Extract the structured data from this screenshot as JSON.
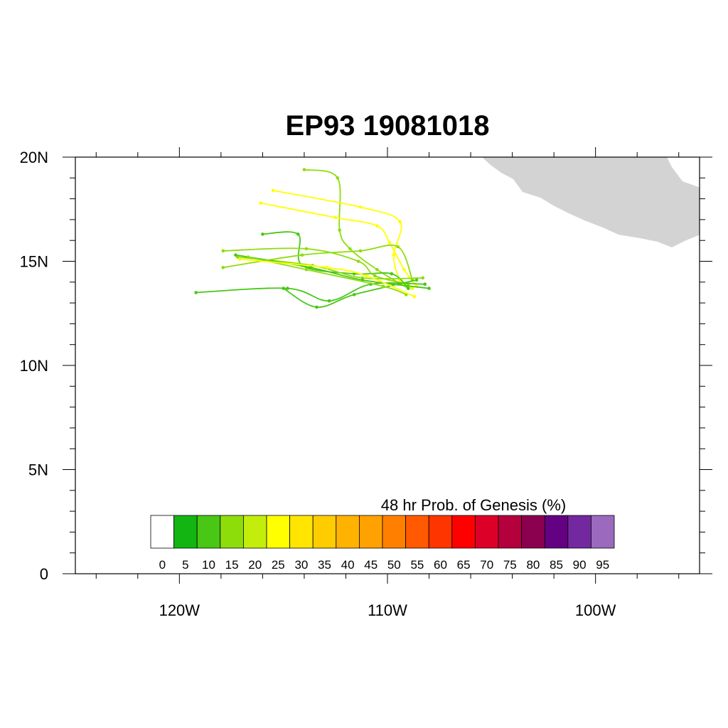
{
  "title": "EP93 19081018",
  "axes": {
    "x_ticks": [
      {
        "label": "120W",
        "lon": -120
      },
      {
        "label": "110W",
        "lon": -110
      },
      {
        "label": "100W",
        "lon": -100
      }
    ],
    "y_ticks": [
      {
        "label": "20N",
        "lat": 20
      },
      {
        "label": "15N",
        "lat": 15
      },
      {
        "label": "10N",
        "lat": 10
      },
      {
        "label": "5N",
        "lat": 5
      },
      {
        "label": "0",
        "lat": 0
      }
    ],
    "lon_range": [
      -125,
      -95
    ],
    "lat_range": [
      0,
      20
    ]
  },
  "land_color": "#d3d3d3",
  "colorbar": {
    "title": "48 hr Prob. of Genesis (%)",
    "labels": [
      "0",
      "5",
      "10",
      "15",
      "20",
      "25",
      "30",
      "35",
      "40",
      "45",
      "50",
      "55",
      "60",
      "65",
      "70",
      "75",
      "80",
      "85",
      "90",
      "95"
    ],
    "colors": [
      "#ffffff",
      "#13b513",
      "#48c715",
      "#8ddd0b",
      "#c3ee0c",
      "#ffff00",
      "#ffe500",
      "#ffcc00",
      "#ffb200",
      "#ffa100",
      "#ff8000",
      "#ff5a00",
      "#ff3500",
      "#ff0000",
      "#dc0028",
      "#b4003c",
      "#8c0050",
      "#640082",
      "#7328a0",
      "#9b69be"
    ]
  },
  "tracks": [
    {
      "color": "#8ddd0b",
      "points": [
        [
          -114,
          19.4
        ],
        [
          -112.4,
          19
        ],
        [
          -112.3,
          16.5
        ],
        [
          -111.8,
          15.6
        ],
        [
          -110.5,
          14.6
        ],
        [
          -109,
          13.7
        ]
      ]
    },
    {
      "color": "#ffff00",
      "points": [
        [
          -115.5,
          18.4
        ],
        [
          -111.3,
          17.6
        ],
        [
          -109.4,
          16.9
        ],
        [
          -109.7,
          15.3
        ],
        [
          -109.4,
          14.1
        ],
        [
          -108.8,
          13.7
        ]
      ]
    },
    {
      "color": "#ffff00",
      "points": [
        [
          -116.1,
          17.8
        ],
        [
          -112.5,
          17.1
        ],
        [
          -110.5,
          16.7
        ],
        [
          -109.9,
          15.9
        ],
        [
          -109.2,
          14.6
        ],
        [
          -108.6,
          13.8
        ]
      ]
    },
    {
      "color": "#48c715",
      "points": [
        [
          -116,
          16.3
        ],
        [
          -114.3,
          16.3
        ],
        [
          -114.1,
          14.8
        ],
        [
          -111.6,
          14.4
        ],
        [
          -109.8,
          14.4
        ],
        [
          -109,
          13.7
        ]
      ]
    },
    {
      "color": "#8ddd0b",
      "points": [
        [
          -117.9,
          15.5
        ],
        [
          -113.9,
          15.6
        ],
        [
          -111.4,
          15
        ],
        [
          -110.6,
          14.3
        ],
        [
          -109,
          13.9
        ]
      ]
    },
    {
      "color": "#8ddd0b",
      "points": [
        [
          -117.2,
          15.2
        ],
        [
          -113.6,
          14.8
        ],
        [
          -111.2,
          14.2
        ],
        [
          -108.3,
          14.2
        ]
      ]
    },
    {
      "color": "#48c715",
      "points": [
        [
          -117.3,
          15.3
        ],
        [
          -113.7,
          14.7
        ],
        [
          -111.2,
          14.1
        ],
        [
          -108,
          13.7
        ]
      ]
    },
    {
      "color": "#8ddd0b",
      "points": [
        [
          -117.9,
          14.7
        ],
        [
          -114.1,
          15.3
        ],
        [
          -111.3,
          15.5
        ],
        [
          -109.5,
          15.7
        ],
        [
          -108.8,
          14.1
        ]
      ]
    },
    {
      "color": "#48c715",
      "points": [
        [
          -119.2,
          13.5
        ],
        [
          -114.8,
          13.7
        ],
        [
          -112.8,
          13.1
        ],
        [
          -110.8,
          13.9
        ],
        [
          -108.2,
          13.9
        ]
      ]
    },
    {
      "color": "#48c715",
      "points": [
        [
          -115,
          13.7
        ],
        [
          -113.4,
          12.8
        ],
        [
          -111.6,
          13.4
        ],
        [
          -108.6,
          14.1
        ]
      ]
    },
    {
      "color": "#8ddd0b",
      "points": [
        [
          -116.7,
          15.2
        ],
        [
          -113.9,
          14.6
        ],
        [
          -110.2,
          13.8
        ],
        [
          -109.1,
          13.4
        ]
      ]
    },
    {
      "color": "#ffff00",
      "points": [
        [
          -117.1,
          15.1
        ],
        [
          -112.9,
          14.7
        ],
        [
          -111,
          14.3
        ],
        [
          -108.7,
          13.3
        ]
      ]
    }
  ]
}
